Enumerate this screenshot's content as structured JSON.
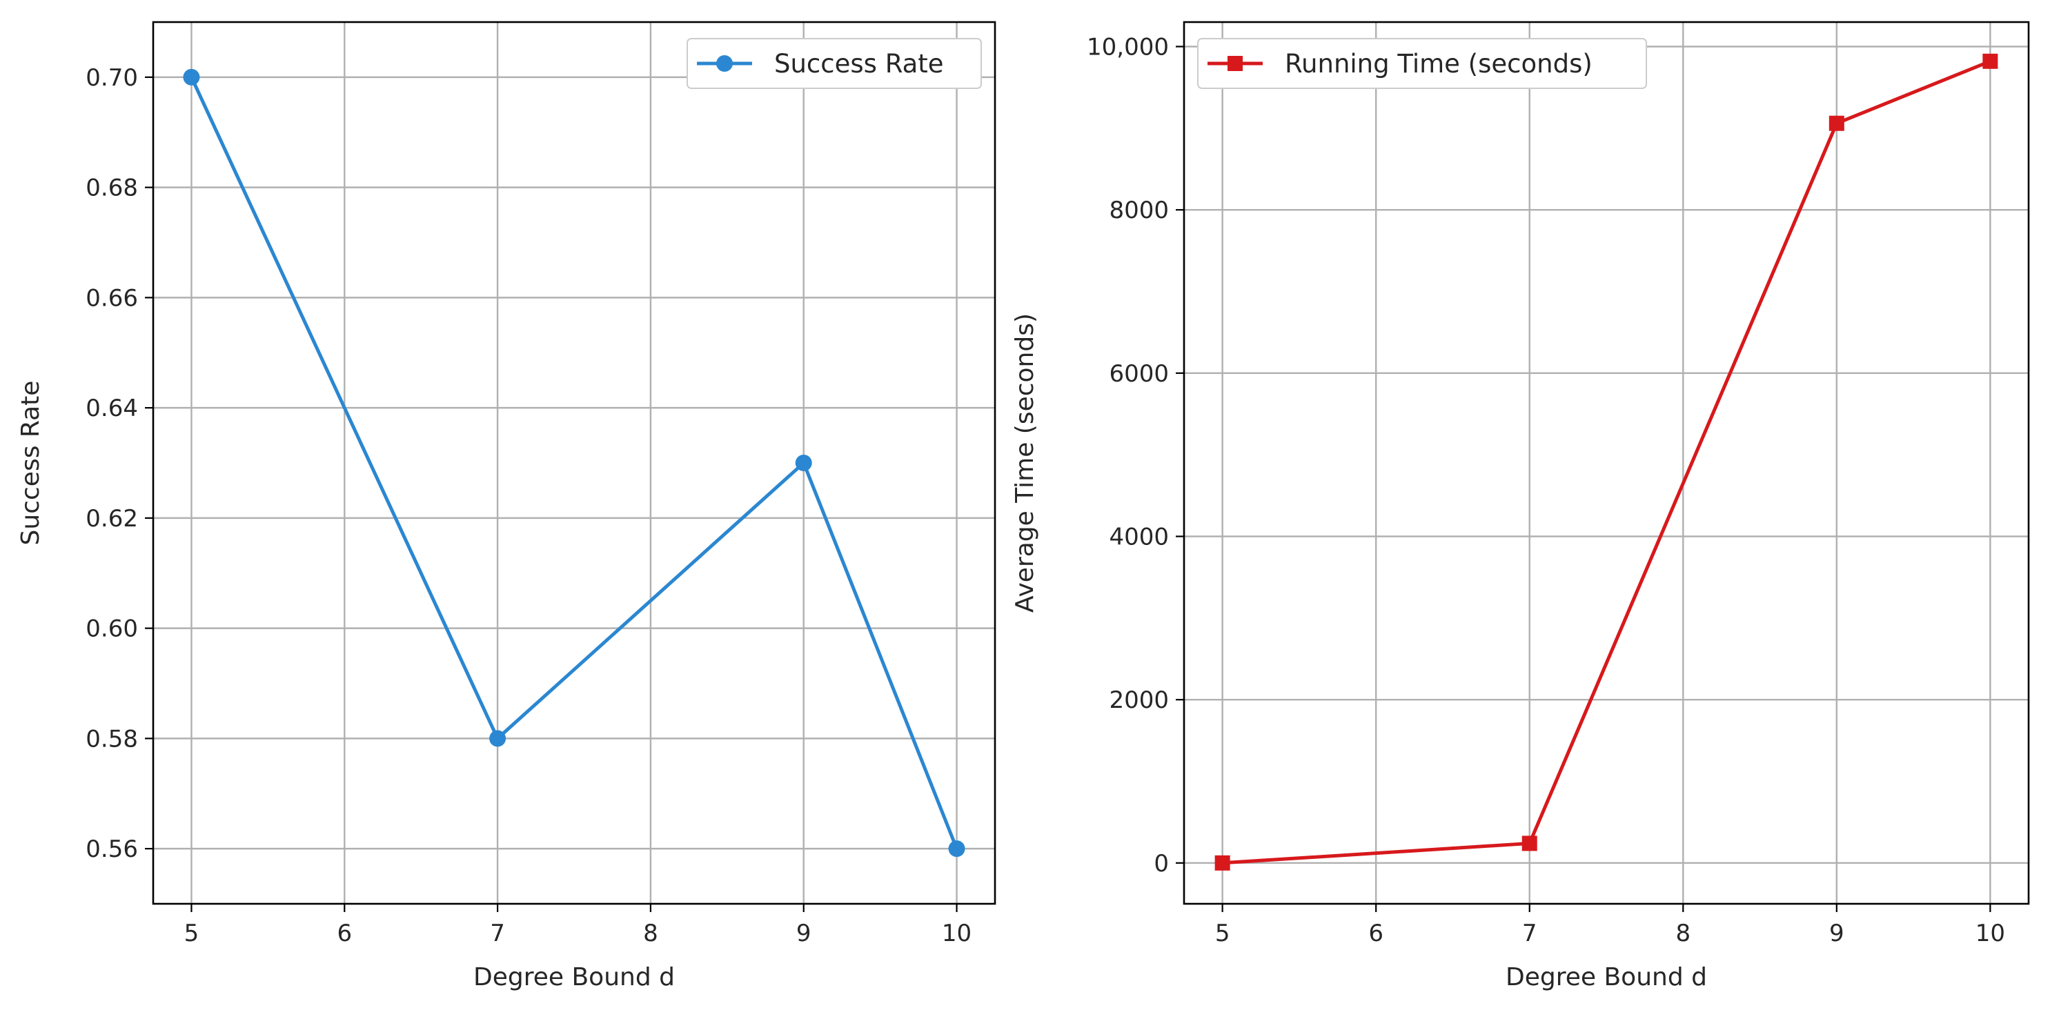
{
  "chart_data": [
    {
      "type": "line",
      "title": "",
      "xlabel": "Degree Bound d",
      "ylabel": "Success Rate",
      "xlim": [
        4.75,
        10.25
      ],
      "ylim": [
        0.55,
        0.71
      ],
      "x_ticks": [
        5,
        6,
        7,
        8,
        9,
        10
      ],
      "x_tick_labels": [
        "5",
        "6",
        "7",
        "8",
        "9",
        "10"
      ],
      "y_ticks": [
        0.56,
        0.58,
        0.6,
        0.62,
        0.64,
        0.66,
        0.68,
        0.7
      ],
      "y_tick_labels": [
        "0.56",
        "0.58",
        "0.60",
        "0.62",
        "0.64",
        "0.66",
        "0.68",
        "0.70"
      ],
      "grid": true,
      "legend_position": "top-right",
      "series": [
        {
          "name": "Success Rate",
          "color": "#2b87d1",
          "marker": "circle",
          "x": [
            5,
            7,
            9,
            10
          ],
          "y": [
            0.7,
            0.58,
            0.63,
            0.56
          ]
        }
      ]
    },
    {
      "type": "line",
      "title": "",
      "xlabel": "Degree Bound d",
      "ylabel": "Average Time (seconds)",
      "xlim": [
        4.75,
        10.25
      ],
      "ylim": [
        -500,
        10300
      ],
      "x_ticks": [
        5,
        6,
        7,
        8,
        9,
        10
      ],
      "x_tick_labels": [
        "5",
        "6",
        "7",
        "8",
        "9",
        "10"
      ],
      "y_ticks": [
        0,
        2000,
        4000,
        6000,
        8000,
        10000
      ],
      "y_tick_labels": [
        "0",
        "2000",
        "4000",
        "6000",
        "8000",
        "10,000"
      ],
      "grid": true,
      "legend_position": "top-left",
      "series": [
        {
          "name": "Running Time (seconds)",
          "color": "#d7191c",
          "marker": "square",
          "x": [
            5,
            7,
            9,
            10
          ],
          "y": [
            0,
            240,
            9060,
            9820
          ]
        }
      ]
    }
  ]
}
